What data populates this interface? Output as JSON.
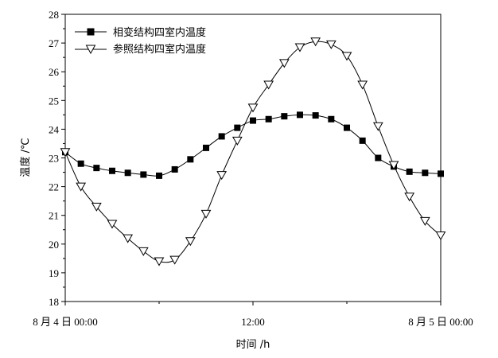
{
  "chart_data": {
    "type": "line",
    "xlabel": "时间 /h",
    "ylabel": "温度 /℃",
    "x_tick_labels": [
      "8 月 4 日 00:00",
      "12:00",
      "8 月 5 日 00:00"
    ],
    "x_tick_hours": [
      0,
      12,
      24
    ],
    "xlim": [
      0,
      24
    ],
    "ylim": [
      18,
      28
    ],
    "y_ticks": [
      18,
      19,
      20,
      21,
      22,
      23,
      24,
      25,
      26,
      27,
      28
    ],
    "grid": false,
    "legend_position": "top-left",
    "series": [
      {
        "name": "相变结构四室内温度",
        "marker": "filled-square",
        "color": "#000000",
        "x": [
          0,
          1,
          2,
          3,
          4,
          5,
          6,
          7,
          8,
          9,
          10,
          11,
          12,
          13,
          14,
          15,
          16,
          17,
          18,
          19,
          20,
          21,
          22,
          23,
          24
        ],
        "values": [
          23.2,
          22.8,
          22.65,
          22.55,
          22.48,
          22.42,
          22.38,
          22.6,
          22.95,
          23.35,
          23.75,
          24.05,
          24.3,
          24.35,
          24.45,
          24.5,
          24.48,
          24.35,
          24.05,
          23.6,
          23.0,
          22.7,
          22.52,
          22.48,
          22.45
        ]
      },
      {
        "name": "参照结构四室内温度",
        "marker": "hollow-triangle-down",
        "color": "#000000",
        "x": [
          0,
          1,
          2,
          3,
          4,
          5,
          6,
          7,
          8,
          9,
          10,
          11,
          12,
          13,
          14,
          15,
          16,
          17,
          18,
          19,
          20,
          21,
          22,
          23,
          24
        ],
        "values": [
          23.2,
          22.0,
          21.3,
          20.7,
          20.2,
          19.75,
          19.4,
          19.45,
          20.1,
          21.05,
          22.4,
          23.6,
          24.75,
          25.55,
          26.3,
          26.85,
          27.05,
          26.95,
          26.55,
          25.55,
          24.1,
          22.75,
          21.65,
          20.8,
          20.3
        ]
      }
    ]
  }
}
